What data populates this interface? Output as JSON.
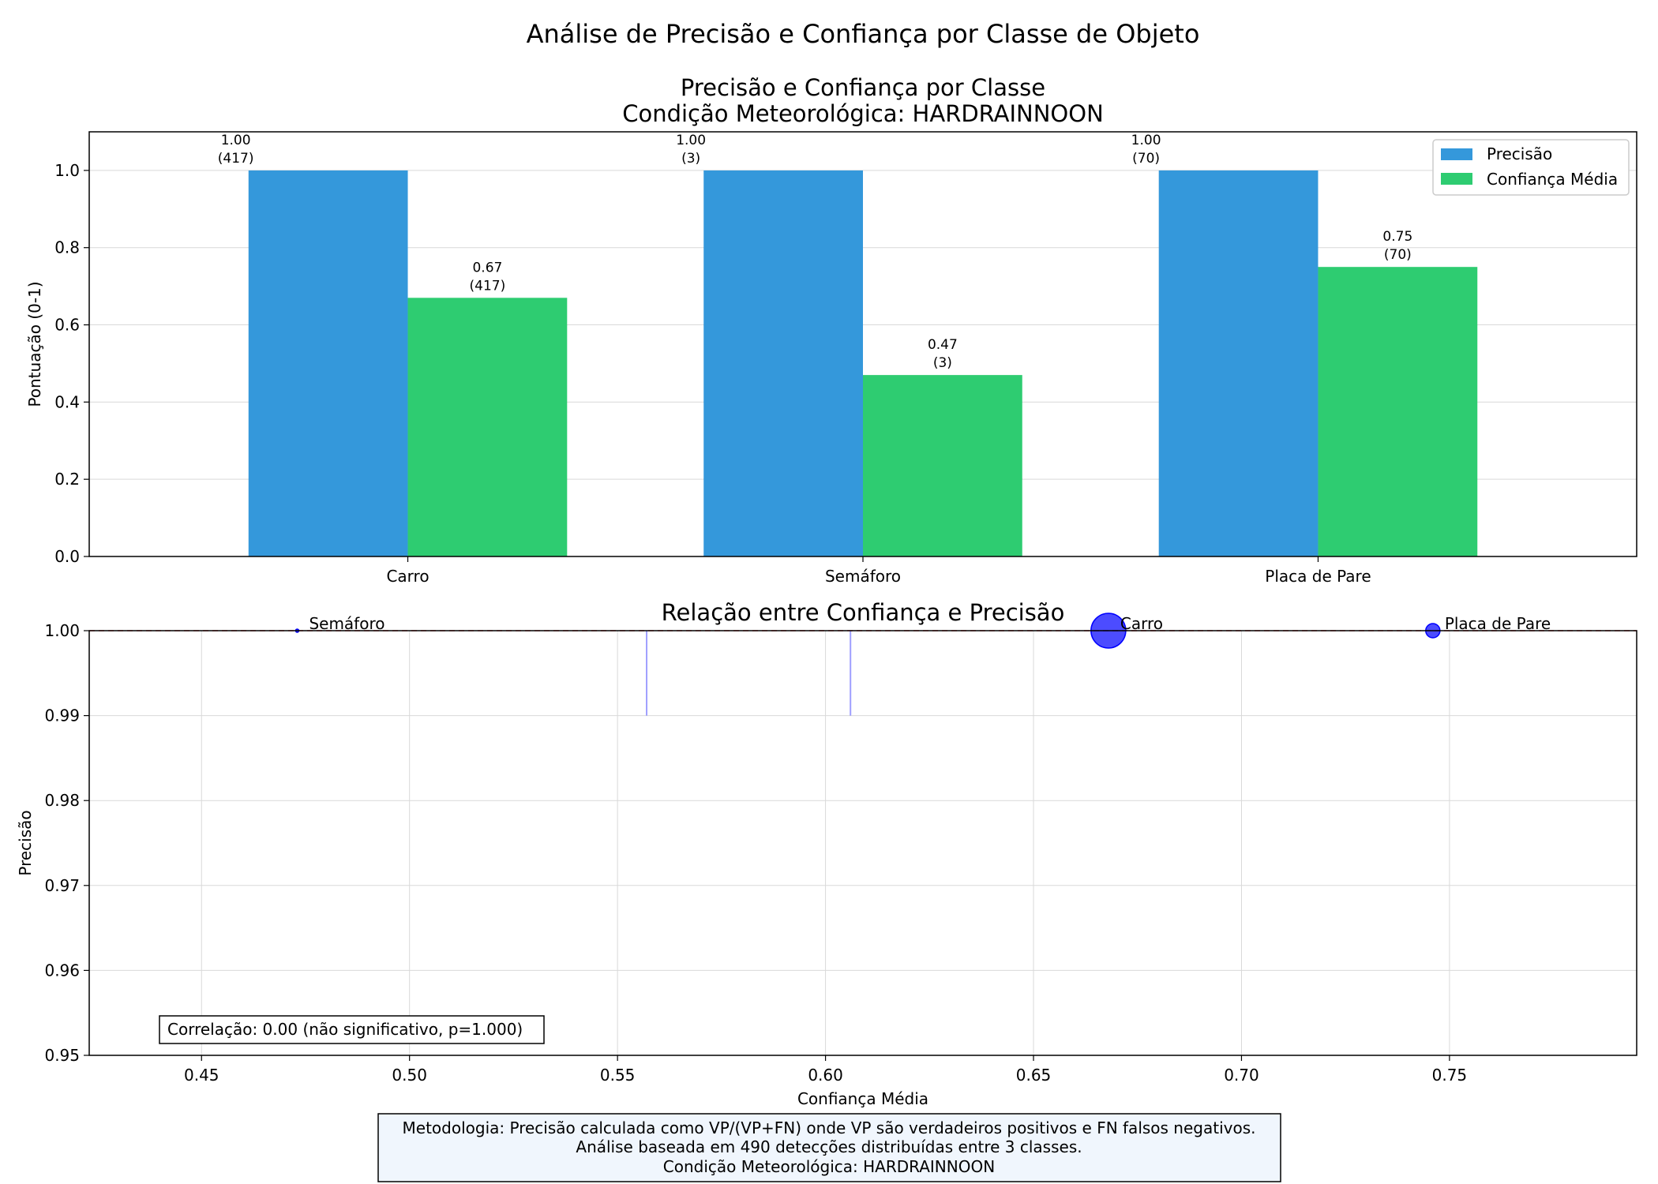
{
  "figure_title": "Análise de Precisão e Confiança por Classe de Objeto",
  "chart_data": [
    {
      "type": "bar",
      "title_line1": "Precisão e Confiança por Classe",
      "title_line2": "Condição Meteorológica: HARDRAINNOON",
      "ylabel": "Pontuação (0-1)",
      "xlabel": "",
      "ylim": [
        0,
        1.1
      ],
      "yticks": [
        "0.0",
        "0.2",
        "0.4",
        "0.6",
        "0.8",
        "1.0"
      ],
      "categories": [
        "Carro",
        "Semáforo",
        "Placa de Pare"
      ],
      "series": [
        {
          "name": "Precisão",
          "color": "#3498db",
          "values": [
            1.0,
            1.0,
            1.0
          ],
          "labels": [
            "1.00",
            "1.00",
            "1.00"
          ],
          "counts": [
            "(417)",
            "(3)",
            "(70)"
          ]
        },
        {
          "name": "Confiança Média",
          "color": "#2ecc71",
          "values": [
            0.67,
            0.47,
            0.75
          ],
          "labels": [
            "0.67",
            "0.47",
            "0.75"
          ],
          "counts": [
            "(417)",
            "(3)",
            "(70)"
          ]
        }
      ],
      "legend": {
        "position": "top-right",
        "entries": [
          "Precisão",
          "Confiança Média"
        ]
      },
      "grid": true
    },
    {
      "type": "scatter",
      "title": "Relação entre Confiança e Precisão",
      "xlabel": "Confiança Média",
      "ylabel": "Precisão",
      "xlim": [
        0.423,
        0.795
      ],
      "ylim": [
        0.95,
        1.0
      ],
      "xticks": [
        "0.45",
        "0.50",
        "0.55",
        "0.60",
        "0.65",
        "0.70",
        "0.75"
      ],
      "yticks": [
        "0.95",
        "0.96",
        "0.97",
        "0.98",
        "0.99",
        "1.00"
      ],
      "points": [
        {
          "label": "Semáforo",
          "x": 0.473,
          "y": 1.0,
          "count": 3
        },
        {
          "label": "Carro",
          "x": 0.668,
          "y": 1.0,
          "count": 417
        },
        {
          "label": "Placa de Pare",
          "x": 0.746,
          "y": 1.0,
          "count": 70
        }
      ],
      "point_color": "#0000ff",
      "reference_line": {
        "y": 1.0,
        "color": "#ff0000",
        "style": "dashed"
      },
      "error_bars": [
        {
          "x": 0.557,
          "y_low": 0.99,
          "y_high": 1.0
        },
        {
          "x": 0.606,
          "y_low": 0.99,
          "y_high": 1.0
        }
      ],
      "correlation_text": "Correlação: 0.00 (não significativo, p=1.000)",
      "grid": true
    }
  ],
  "footnote": {
    "line1": "Metodologia: Precisão calculada como VP/(VP+FN) onde VP são verdadeiros positivos e FN falsos negativos.",
    "line2": "Análise baseada em 490 detecções distribuídas entre 3 classes.",
    "line3": "Condição Meteorológica: HARDRAINNOON"
  }
}
